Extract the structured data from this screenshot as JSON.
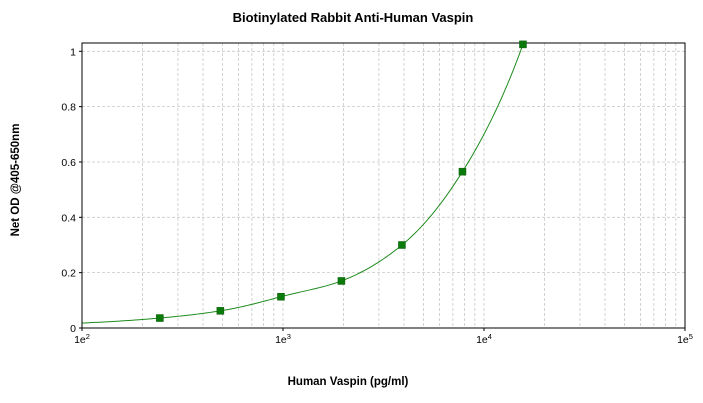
{
  "chart_data": {
    "type": "scatter",
    "title": "Biotinylated Rabbit Anti-Human Vaspin",
    "xlabel": "Human Vaspin (pg/ml)",
    "ylabel": "Net OD @405-650nm",
    "x_scale": "log",
    "xlim": [
      100,
      100000
    ],
    "ylim": [
      0,
      1.03
    ],
    "x_ticks": [
      {
        "value": 100,
        "base": "1e",
        "exp": "2"
      },
      {
        "value": 1000,
        "base": "1e",
        "exp": "3"
      },
      {
        "value": 10000,
        "base": "1e",
        "exp": "4"
      },
      {
        "value": 100000,
        "base": "1e",
        "exp": "5"
      }
    ],
    "y_ticks": [
      {
        "value": 0,
        "label": "0"
      },
      {
        "value": 0.2,
        "label": "0.2"
      },
      {
        "value": 0.4,
        "label": "0.4"
      },
      {
        "value": 0.6,
        "label": "0.6"
      },
      {
        "value": 0.8,
        "label": "0.8"
      },
      {
        "value": 1,
        "label": "1"
      }
    ],
    "grid": true,
    "series": [
      {
        "marker_color": "#0a7a0a",
        "line_color": "#1e8c1e",
        "points": [
          {
            "x": 244,
            "y": 0.036
          },
          {
            "x": 488,
            "y": 0.062
          },
          {
            "x": 977,
            "y": 0.113
          },
          {
            "x": 1953,
            "y": 0.17
          },
          {
            "x": 3906,
            "y": 0.3
          },
          {
            "x": 7813,
            "y": 0.565
          },
          {
            "x": 15625,
            "y": 1.025
          }
        ],
        "fit_curve": true
      }
    ]
  }
}
